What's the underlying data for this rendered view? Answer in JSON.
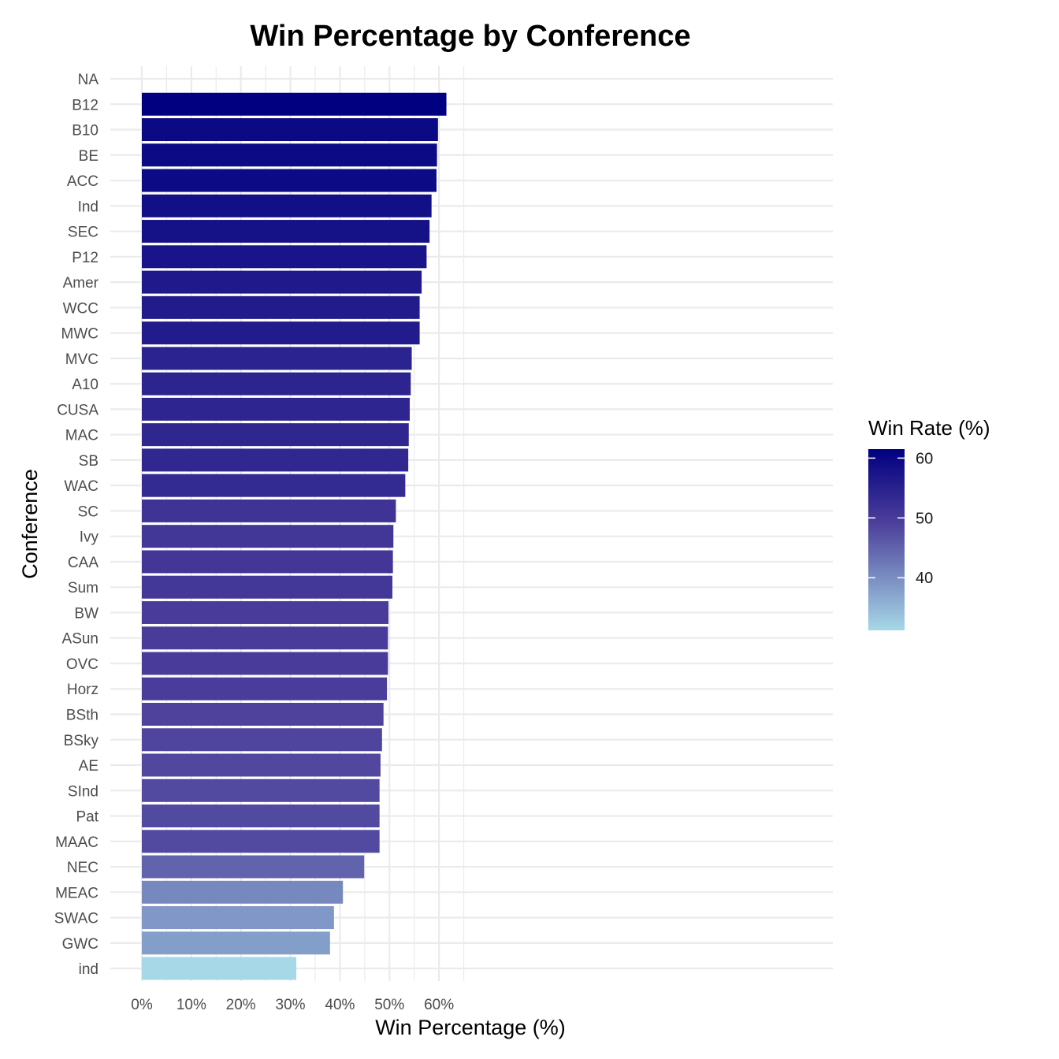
{
  "chart_data": {
    "type": "bar",
    "orientation": "horizontal",
    "title": "Win Percentage by Conference",
    "xlabel": "Win Percentage (%)",
    "ylabel": "Conference",
    "xlim": [
      0,
      70
    ],
    "x_ticks": [
      0,
      10,
      20,
      30,
      40,
      50,
      60
    ],
    "x_tick_labels": [
      "0%",
      "10%",
      "20%",
      "30%",
      "40%",
      "50%",
      "60%"
    ],
    "grid": true,
    "categories": [
      "NA",
      "B12",
      "B10",
      "BE",
      "ACC",
      "Ind",
      "SEC",
      "P12",
      "Amer",
      "WCC",
      "MWC",
      "MVC",
      "A10",
      "CUSA",
      "MAC",
      "SB",
      "WAC",
      "SC",
      "Ivy",
      "CAA",
      "Sum",
      "BW",
      "ASun",
      "OVC",
      "Horz",
      "BSth",
      "BSky",
      "AE",
      "SInd",
      "Pat",
      "MAAC",
      "NEC",
      "MEAC",
      "SWAC",
      "GWC",
      "ind"
    ],
    "values": [
      null,
      61.5,
      59.8,
      59.6,
      59.5,
      58.5,
      58.1,
      57.5,
      56.5,
      56.1,
      56.1,
      54.5,
      54.3,
      54.1,
      53.9,
      53.8,
      53.2,
      51.3,
      50.8,
      50.7,
      50.6,
      49.8,
      49.7,
      49.7,
      49.5,
      48.8,
      48.5,
      48.2,
      48.0,
      48.0,
      48.0,
      44.9,
      40.6,
      38.8,
      38.0,
      31.2
    ],
    "legend": {
      "title": "Win Rate (%)",
      "position": "right",
      "range": [
        31.2,
        61.5
      ],
      "ticks": [
        60,
        50,
        40
      ],
      "tick_labels": [
        "60",
        "50",
        "40"
      ],
      "color_low": "#A6D8E7",
      "color_mid": "#4B3D9A",
      "color_high": "#000080"
    }
  }
}
